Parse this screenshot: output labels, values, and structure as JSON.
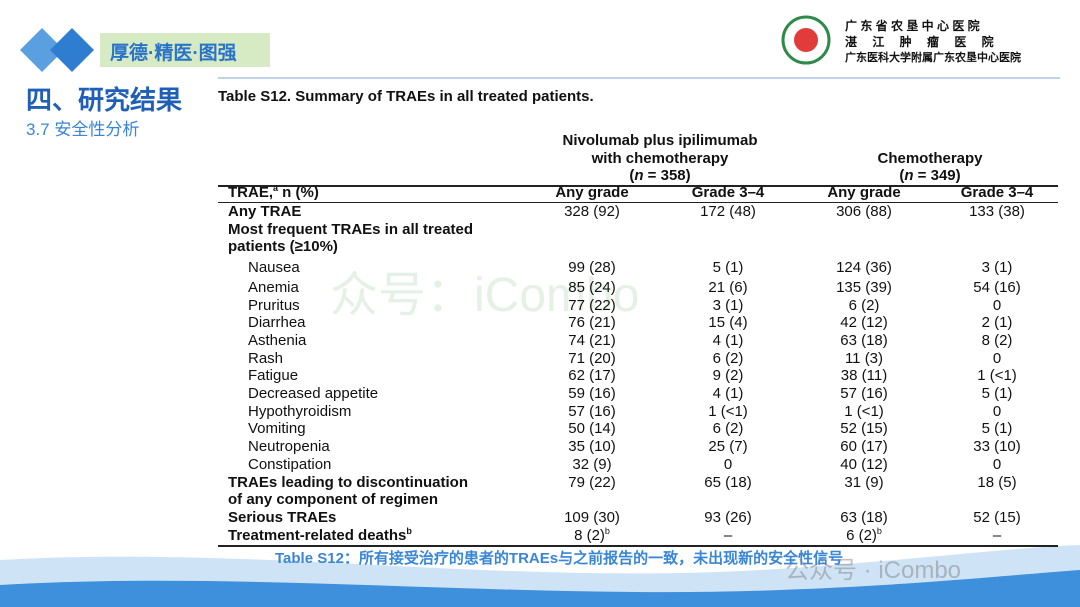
{
  "header": {
    "slogan": "厚德·精医·图强",
    "hospital_lines": [
      "广 东 省 农 垦 中 心 医 院",
      "湛　 江　 肿　 瘤　 医　 院",
      "广东医科大学附属广东农垦中心医院"
    ]
  },
  "section": {
    "title": "四、研究结果",
    "subtitle": "3.7 安全性分析"
  },
  "table": {
    "title": "Table S12. Summary of TRAEs in all treated patients.",
    "groups": [
      {
        "lines": [
          "Nivolumab plus ipilimumab",
          "with chemotherapy"
        ],
        "n": {
          "open": "(",
          "italic": "n",
          "rest": " = 358)"
        }
      },
      {
        "lines": [
          "Chemotherapy"
        ],
        "n": {
          "open": "(",
          "italic": "n",
          "rest": " = 349)"
        }
      }
    ],
    "column_header": {
      "label": "TRAE,",
      "sup": "a",
      "suffix": " n (%)"
    },
    "subheaders": [
      "Any grade",
      "Grade 3–4",
      "Any grade",
      "Grade 3–4"
    ],
    "rows": [
      {
        "lines": [
          "Any TRAE"
        ],
        "bold": true,
        "cells": [
          "328 (92)",
          "172 (48)",
          "306 (88)",
          "133 (38)"
        ]
      },
      {
        "lines": [
          "Most frequent TRAEs in all treated",
          "patients (≥10%)"
        ],
        "bold": true
      },
      {
        "lines": [
          "Nausea"
        ],
        "indent": true,
        "cells": [
          "99 (28)",
          "5 (1)",
          "124 (36)",
          "3 (1)"
        ]
      },
      {
        "lines": [
          "Anemia"
        ],
        "indent": true,
        "cells": [
          "85 (24)",
          "21 (6)",
          "135 (39)",
          "54 (16)"
        ]
      },
      {
        "lines": [
          "Pruritus"
        ],
        "indent": true,
        "cells": [
          "77 (22)",
          "3 (1)",
          "6 (2)",
          "0"
        ]
      },
      {
        "lines": [
          "Diarrhea"
        ],
        "indent": true,
        "cells": [
          "76 (21)",
          "15 (4)",
          "42 (12)",
          "2 (1)"
        ]
      },
      {
        "lines": [
          "Asthenia"
        ],
        "indent": true,
        "cells": [
          "74 (21)",
          "4 (1)",
          "63 (18)",
          "8 (2)"
        ]
      },
      {
        "lines": [
          "Rash"
        ],
        "indent": true,
        "cells": [
          "71 (20)",
          "6 (2)",
          "11 (3)",
          "0"
        ]
      },
      {
        "lines": [
          "Fatigue"
        ],
        "indent": true,
        "cells": [
          "62 (17)",
          "9 (2)",
          "38 (11)",
          "1 (<1)"
        ]
      },
      {
        "lines": [
          "Decreased appetite"
        ],
        "indent": true,
        "cells": [
          "59 (16)",
          "4 (1)",
          "57 (16)",
          "5 (1)"
        ]
      },
      {
        "lines": [
          "Hypothyroidism"
        ],
        "indent": true,
        "cells": [
          "57 (16)",
          "1 (<1)",
          "1 (<1)",
          "0"
        ]
      },
      {
        "lines": [
          "Vomiting"
        ],
        "indent": true,
        "cells": [
          "50 (14)",
          "6 (2)",
          "52 (15)",
          "5 (1)"
        ]
      },
      {
        "lines": [
          "Neutropenia"
        ],
        "indent": true,
        "cells": [
          "35 (10)",
          "25 (7)",
          "60 (17)",
          "33 (10)"
        ]
      },
      {
        "lines": [
          "Constipation"
        ],
        "indent": true,
        "cells": [
          "32 (9)",
          "0",
          "40 (12)",
          "0"
        ]
      },
      {
        "lines": [
          "TRAEs leading to discontinuation",
          "of any component of regimen"
        ],
        "bold": true,
        "cells": [
          "79 (22)",
          "65 (18)",
          "31 (9)",
          "18 (5)"
        ]
      },
      {
        "lines": [
          "Serious TRAEs"
        ],
        "bold": true,
        "cells": [
          "109 (30)",
          "93 (26)",
          "63 (18)",
          "52 (15)"
        ]
      },
      {
        "lines": [
          "Treatment-related deaths"
        ],
        "sup": "b",
        "bold": true,
        "cells": [
          {
            "text": "8 (2)",
            "sup": "b"
          },
          "–",
          {
            "text": "6 (2)",
            "sup": "b"
          },
          "–"
        ]
      }
    ]
  },
  "caption": "Table S12：所有接受治疗的患者的TRAEs与之前报告的一致，未出现新的安全性信号",
  "watermarks": [
    "众号：iCombo",
    "公众号 · iCombo"
  ]
}
